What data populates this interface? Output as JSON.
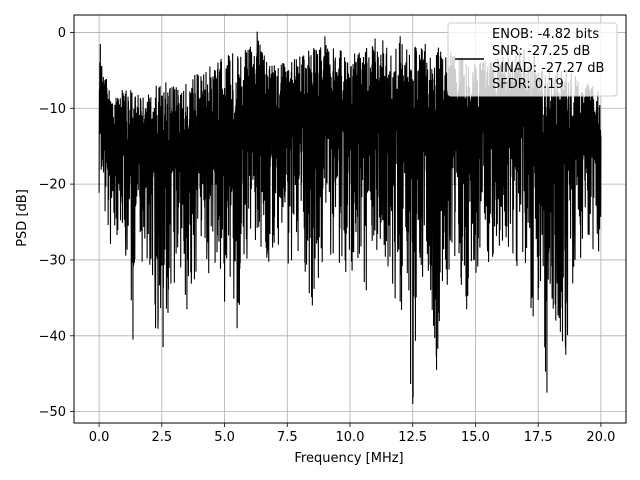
{
  "chart_data": {
    "type": "line",
    "xlabel": "Frequency [MHz]",
    "ylabel": "PSD [dB]",
    "xlim": [
      -1.0,
      21.0
    ],
    "ylim": [
      -51.5,
      2.3
    ],
    "xticks": [
      0.0,
      2.5,
      5.0,
      7.5,
      10.0,
      12.5,
      15.0,
      17.5,
      20.0
    ],
    "xtick_labels": [
      "0.0",
      "2.5",
      "5.0",
      "7.5",
      "10.0",
      "12.5",
      "15.0",
      "17.5",
      "20.0"
    ],
    "yticks": [
      0,
      -10,
      -20,
      -30,
      -40,
      -50
    ],
    "ytick_labels": [
      "0",
      "−10",
      "−20",
      "−30",
      "−40",
      "−50"
    ],
    "grid": true,
    "series": [
      {
        "color": "#000000",
        "x_range": [
          0.0,
          20.0
        ],
        "upper_envelope": [
          [
            0.0,
            -2
          ],
          [
            0.5,
            -9
          ],
          [
            1.0,
            -7
          ],
          [
            1.5,
            -8
          ],
          [
            2.0,
            -7
          ],
          [
            2.5,
            -6
          ],
          [
            3.0,
            -7
          ],
          [
            3.5,
            -6
          ],
          [
            4.0,
            -5
          ],
          [
            5.0,
            -3
          ],
          [
            6.0,
            -2
          ],
          [
            6.3,
            0
          ],
          [
            7.0,
            -4
          ],
          [
            8.0,
            -3
          ],
          [
            9.0,
            -1
          ],
          [
            10.0,
            -3
          ],
          [
            11.0,
            -1
          ],
          [
            12.0,
            -1
          ],
          [
            13.0,
            -2
          ],
          [
            14.0,
            -2
          ],
          [
            15.0,
            -4
          ],
          [
            16.0,
            -3
          ],
          [
            17.0,
            -2
          ],
          [
            18.0,
            -5
          ],
          [
            19.0,
            -5
          ],
          [
            20.0,
            -8
          ]
        ],
        "lower_envelope": [
          [
            0.0,
            -24
          ],
          [
            0.5,
            -29
          ],
          [
            1.0,
            -30
          ],
          [
            1.3,
            -40.5
          ],
          [
            1.5,
            -30
          ],
          [
            2.0,
            -33
          ],
          [
            2.3,
            -39
          ],
          [
            2.5,
            -41.5
          ],
          [
            3.0,
            -33
          ],
          [
            3.5,
            -36.5
          ],
          [
            4.0,
            -30
          ],
          [
            5.0,
            -35.5
          ],
          [
            5.5,
            -39
          ],
          [
            6.0,
            -29
          ],
          [
            7.0,
            -31
          ],
          [
            8.0,
            -30
          ],
          [
            8.5,
            -36
          ],
          [
            9.0,
            -29
          ],
          [
            10.0,
            -33
          ],
          [
            10.7,
            -34
          ],
          [
            12.0,
            -35.5
          ],
          [
            12.5,
            -49
          ],
          [
            13.0,
            -31
          ],
          [
            13.5,
            -44.5
          ],
          [
            14.0,
            -30
          ],
          [
            14.7,
            -36.5
          ],
          [
            15.0,
            -32
          ],
          [
            16.0,
            -29
          ],
          [
            17.0,
            -33
          ],
          [
            17.8,
            -47.5
          ],
          [
            18.2,
            -38
          ],
          [
            18.6,
            -42.5
          ],
          [
            19.0,
            -30
          ],
          [
            20.0,
            -29
          ]
        ],
        "deep_dips": [
          [
            1.35,
            -40.5
          ],
          [
            2.25,
            -39.0
          ],
          [
            2.55,
            -41.5
          ],
          [
            3.0,
            -33.0
          ],
          [
            3.5,
            -36.5
          ],
          [
            5.0,
            -35.5
          ],
          [
            5.5,
            -39.0
          ],
          [
            8.5,
            -36.0
          ],
          [
            10.65,
            -34.0
          ],
          [
            12.0,
            -35.5
          ],
          [
            12.5,
            -49.0
          ],
          [
            13.45,
            -44.5
          ],
          [
            14.65,
            -36.5
          ],
          [
            17.85,
            -47.5
          ],
          [
            18.2,
            -38.0
          ],
          [
            18.6,
            -42.5
          ]
        ],
        "peaks": [
          [
            0.05,
            -1.5
          ],
          [
            6.3,
            0.1
          ],
          [
            9.0,
            -0.5
          ],
          [
            11.0,
            -0.8
          ],
          [
            12.0,
            -0.5
          ],
          [
            13.0,
            -1.5
          ]
        ]
      }
    ],
    "legend": {
      "placement": "top-right",
      "entries": [
        "ENOB: -4.82 bits",
        "SNR: -27.25 dB",
        "SINAD: -27.27 dB",
        "SFDR: 0.19"
      ]
    }
  }
}
